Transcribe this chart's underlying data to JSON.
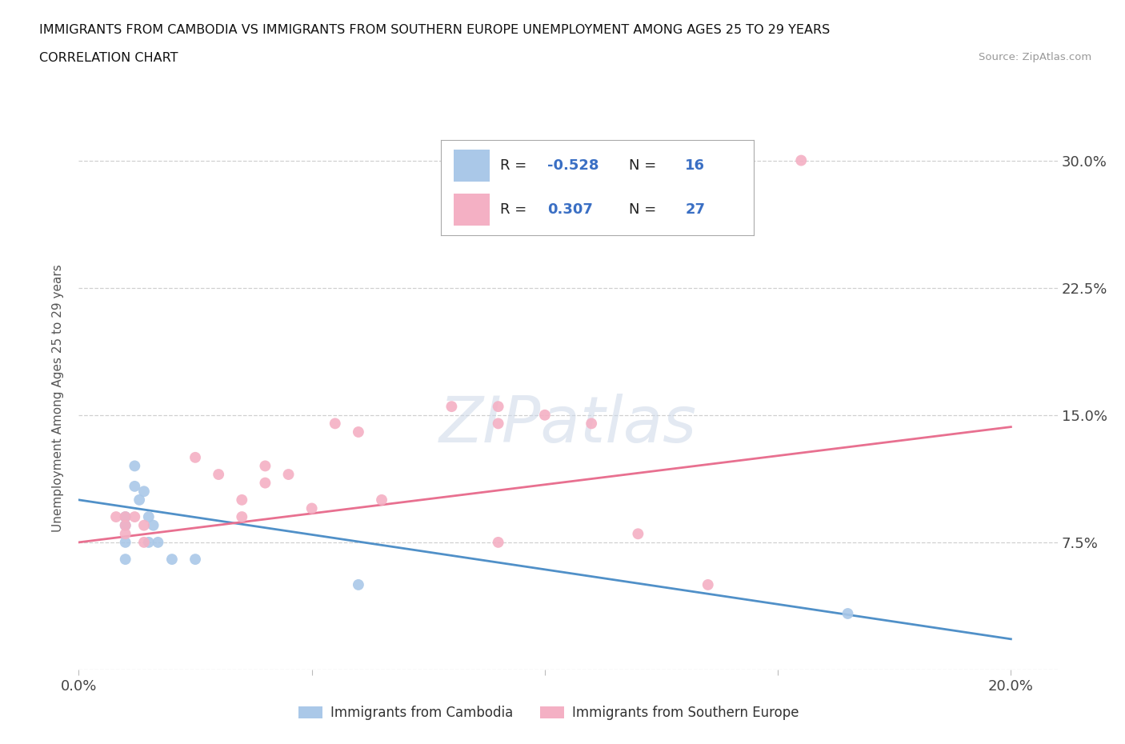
{
  "title_line1": "IMMIGRANTS FROM CAMBODIA VS IMMIGRANTS FROM SOUTHERN EUROPE UNEMPLOYMENT AMONG AGES 25 TO 29 YEARS",
  "title_line2": "CORRELATION CHART",
  "source": "Source: ZipAtlas.com",
  "ylabel": "Unemployment Among Ages 25 to 29 years",
  "xlim": [
    0.0,
    0.21
  ],
  "ylim": [
    0.0,
    0.32
  ],
  "xticks": [
    0.0,
    0.05,
    0.1,
    0.15,
    0.2
  ],
  "yticks": [
    0.0,
    0.075,
    0.15,
    0.225,
    0.3
  ],
  "background_color": "#ffffff",
  "cambodia_color": "#aac8e8",
  "s_europe_color": "#f4b0c4",
  "cambodia_line_color": "#5090c8",
  "s_europe_line_color": "#e87090",
  "r1": -0.528,
  "n1": 16,
  "r2": 0.307,
  "n2": 27,
  "accent_color": "#3a6fc4",
  "cambodia_scatter_x": [
    0.01,
    0.01,
    0.01,
    0.01,
    0.012,
    0.012,
    0.013,
    0.014,
    0.015,
    0.015,
    0.016,
    0.017,
    0.02,
    0.025,
    0.06,
    0.165
  ],
  "cambodia_scatter_y": [
    0.09,
    0.085,
    0.075,
    0.065,
    0.12,
    0.108,
    0.1,
    0.105,
    0.09,
    0.075,
    0.085,
    0.075,
    0.065,
    0.065,
    0.05,
    0.033
  ],
  "s_europe_scatter_x": [
    0.008,
    0.01,
    0.01,
    0.01,
    0.012,
    0.014,
    0.014,
    0.025,
    0.03,
    0.035,
    0.035,
    0.04,
    0.04,
    0.045,
    0.05,
    0.055,
    0.06,
    0.065,
    0.08,
    0.09,
    0.09,
    0.09,
    0.1,
    0.11,
    0.12,
    0.135,
    0.155
  ],
  "s_europe_scatter_y": [
    0.09,
    0.09,
    0.085,
    0.08,
    0.09,
    0.085,
    0.075,
    0.125,
    0.115,
    0.1,
    0.09,
    0.12,
    0.11,
    0.115,
    0.095,
    0.145,
    0.14,
    0.1,
    0.155,
    0.155,
    0.145,
    0.075,
    0.15,
    0.145,
    0.08,
    0.05,
    0.3
  ],
  "cam_trend_x": [
    0.0,
    0.2
  ],
  "cam_trend_y": [
    0.1,
    0.018
  ],
  "seu_trend_x": [
    0.0,
    0.2
  ],
  "seu_trend_y": [
    0.075,
    0.143
  ],
  "grid_color": "#d0d0d0",
  "legend_label1": "Immigrants from Cambodia",
  "legend_label2": "Immigrants from Southern Europe"
}
